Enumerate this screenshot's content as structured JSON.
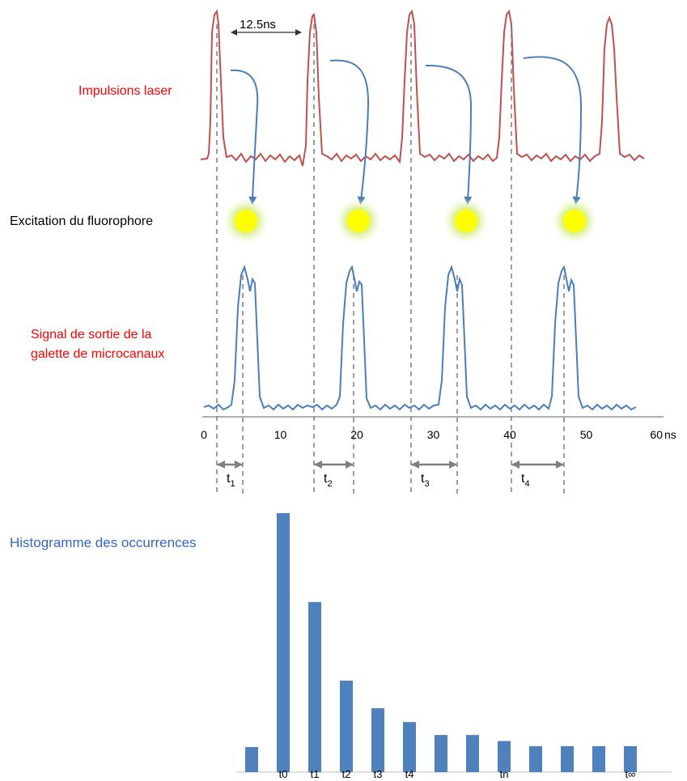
{
  "labels": {
    "laser": "Impulsions laser",
    "excitation": "Excitation du fluorophore",
    "signal_line1": "Signal de sortie de la",
    "signal_line2": "galette de microcanaux",
    "period": "12.5ns",
    "histogram_title": "Histogramme des  occurrences"
  },
  "colors": {
    "laser": "#c0504d",
    "signal": "#4a7ebb",
    "bar": "#4f81bd",
    "red_text": "#ff0000",
    "blue_text": "#3366cc",
    "fluorophore": "#ffff00",
    "glow": "#b7e07a",
    "guide": "#7f7f7f"
  },
  "time_axis": {
    "unit": "ns",
    "ticks": [
      {
        "value": 0,
        "label": "0"
      },
      {
        "value": 10,
        "label": "10"
      },
      {
        "value": 20,
        "label": "20"
      },
      {
        "value": 30,
        "label": "30"
      },
      {
        "value": 40,
        "label": "40"
      },
      {
        "value": 50,
        "label": "50"
      },
      {
        "value": 60,
        "label": "60"
      }
    ]
  },
  "delays": [
    {
      "main": "t",
      "sub": "1"
    },
    {
      "main": "t",
      "sub": "2"
    },
    {
      "main": "t",
      "sub": "3"
    },
    {
      "main": "t",
      "sub": "4"
    }
  ],
  "chart_data": {
    "type": "bar",
    "title": "Histogramme des  occurrences",
    "categories": [
      "",
      "t0",
      "t1",
      "t2",
      "t3",
      "t4",
      "",
      "",
      "tn",
      "",
      "",
      "",
      "t∞"
    ],
    "values": [
      29,
      300,
      197,
      106,
      74,
      58,
      43,
      43,
      36,
      30,
      30,
      30,
      30
    ],
    "ylim": [
      0,
      300
    ]
  }
}
